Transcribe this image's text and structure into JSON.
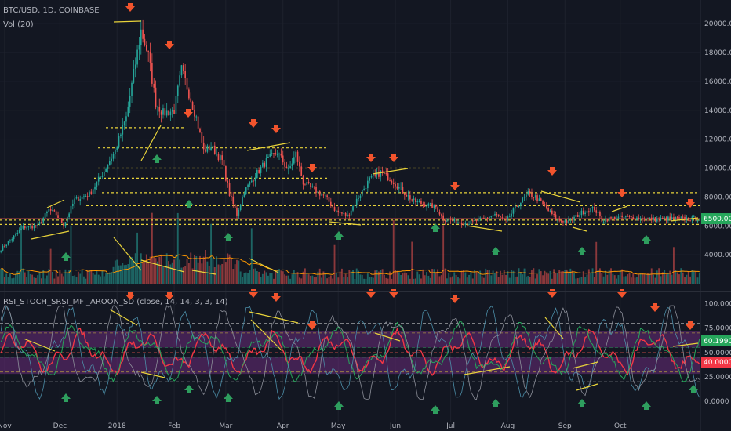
{
  "chart_data": [
    {
      "type": "candlestick",
      "title": "BTC/USD, 1D, COINBASE",
      "volume_label": "Vol (20)",
      "y_ticks": [
        4000,
        6000,
        8000,
        10000,
        12000,
        14000,
        16000,
        18000,
        20000
      ],
      "y_tick_labels": [
        "4000.00",
        "6000.00",
        "8000.00",
        "10000.00",
        "12000.00",
        "14000.00",
        "16000.00",
        "18000.00",
        "20000.00"
      ],
      "ylim": [
        2000,
        21200
      ],
      "x_labels": [
        "Nov",
        "Dec",
        "2018",
        "Feb",
        "Mar",
        "Apr",
        "May",
        "Jun",
        "Jul",
        "Aug",
        "Sep",
        "Oct"
      ],
      "x_label_days": [
        2,
        32,
        63,
        94,
        122,
        153,
        183,
        214,
        244,
        275,
        306,
        336
      ],
      "days": 380,
      "price_anchors": [
        [
          0,
          4400
        ],
        [
          5,
          5000
        ],
        [
          12,
          5900
        ],
        [
          20,
          6000
        ],
        [
          26,
          7100
        ],
        [
          30,
          6800
        ],
        [
          34,
          6050
        ],
        [
          40,
          7800
        ],
        [
          48,
          8200
        ],
        [
          56,
          9800
        ],
        [
          62,
          11200
        ],
        [
          68,
          13500
        ],
        [
          72,
          16500
        ],
        [
          76,
          19500
        ],
        [
          80,
          17800
        ],
        [
          84,
          14500
        ],
        [
          88,
          13800
        ],
        [
          94,
          14000
        ],
        [
          98,
          16800
        ],
        [
          102,
          15200
        ],
        [
          106,
          13500
        ],
        [
          110,
          11200
        ],
        [
          114,
          11500
        ],
        [
          120,
          10500
        ],
        [
          124,
          8200
        ],
        [
          128,
          6800
        ],
        [
          132,
          8400
        ],
        [
          138,
          9500
        ],
        [
          144,
          10500
        ],
        [
          150,
          11100
        ],
        [
          156,
          9800
        ],
        [
          160,
          11000
        ],
        [
          164,
          9000
        ],
        [
          170,
          8500
        ],
        [
          176,
          8000
        ],
        [
          182,
          7000
        ],
        [
          188,
          6700
        ],
        [
          194,
          8000
        ],
        [
          200,
          9200
        ],
        [
          206,
          9700
        ],
        [
          212,
          9200
        ],
        [
          218,
          8400
        ],
        [
          224,
          7700
        ],
        [
          230,
          7500
        ],
        [
          236,
          7300
        ],
        [
          240,
          6500
        ],
        [
          246,
          6300
        ],
        [
          254,
          6200
        ],
        [
          262,
          6500
        ],
        [
          268,
          6800
        ],
        [
          274,
          6300
        ],
        [
          280,
          7400
        ],
        [
          286,
          8200
        ],
        [
          290,
          8000
        ],
        [
          296,
          7200
        ],
        [
          302,
          6400
        ],
        [
          308,
          6300
        ],
        [
          316,
          7000
        ],
        [
          322,
          7200
        ],
        [
          326,
          6400
        ],
        [
          332,
          6550
        ],
        [
          340,
          6600
        ],
        [
          348,
          6500
        ],
        [
          356,
          6450
        ],
        [
          362,
          6500
        ]
      ],
      "last_price_label": "6500.00"
    },
    {
      "type": "line",
      "title": "RSI_STOCH_SRSI_MFI_AROON_SD (close, 14, 14, 3, 3, 14)",
      "y_ticks": [
        0,
        25,
        50,
        75,
        100
      ],
      "y_tick_labels": [
        "0.0000",
        "25.0000",
        "50.0000",
        "75.0000",
        "100.0000"
      ],
      "ylim": [
        -8,
        106
      ],
      "series": [
        {
          "color": "#f23645",
          "width": 1.4
        },
        {
          "color": "#26a65b",
          "width": 1.0
        },
        {
          "color": "#4c8ea8",
          "width": 0.8
        },
        {
          "color": "#8c8f99",
          "width": 0.8
        }
      ],
      "last_values": [
        "60.1990",
        "40.0000"
      ]
    }
  ],
  "colors": {
    "background": "#131722",
    "up": "#26a69a",
    "down": "#ef5350",
    "trendline": "#e8d33a",
    "arrow_down": "#f2542d",
    "arrow_up": "#2e9e5e",
    "band": "#6a2b7a",
    "volume_ma": "#ff9800"
  }
}
